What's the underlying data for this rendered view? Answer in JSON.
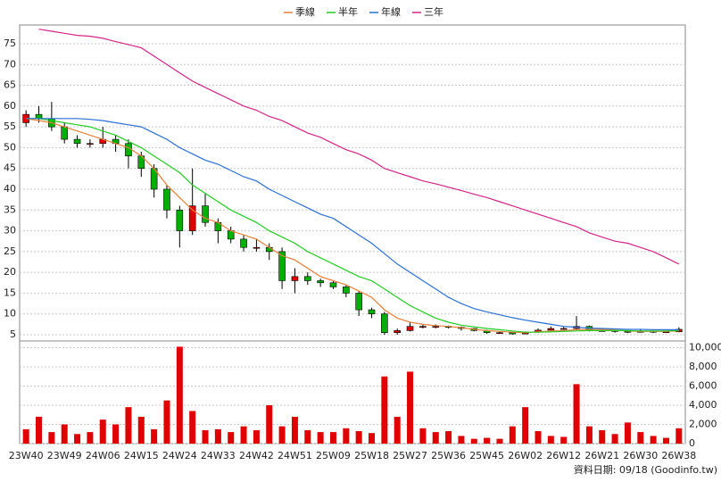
{
  "chart_data": [
    {
      "type": "candlestick",
      "up_color": "#e00000",
      "down_color": "#00b000",
      "ylim": [
        3.5,
        79.5
      ],
      "yticks": [
        5,
        10,
        15,
        20,
        25,
        30,
        35,
        40,
        45,
        50,
        55,
        60,
        65,
        70,
        75
      ],
      "grid": true,
      "open": [
        56,
        58,
        57,
        55,
        52,
        51,
        51,
        52,
        51,
        48,
        45,
        40,
        35,
        30,
        36,
        32,
        30,
        28,
        26,
        26,
        25,
        18,
        19,
        18,
        17.5,
        16.5,
        15,
        11,
        10,
        5.5,
        6,
        7,
        7,
        7,
        6.8,
        6.5,
        6,
        5.5,
        5.5,
        5.2,
        5.6,
        6.1,
        6.5,
        6.5,
        7,
        6,
        6,
        5.8,
        5.6,
        5.9,
        5.6,
        5.7
      ],
      "high": [
        59,
        60,
        61,
        56,
        53,
        52,
        55,
        53,
        52,
        49,
        46,
        41,
        36,
        45,
        39,
        33,
        31,
        29,
        28,
        27,
        26,
        21,
        20,
        18.5,
        18,
        17,
        15.5,
        11.5,
        10.5,
        6.5,
        8,
        7.5,
        7.5,
        7.2,
        7,
        6.6,
        6.2,
        5.8,
        5.6,
        5.8,
        6.5,
        7,
        7,
        9.5,
        7.2,
        6.5,
        6.2,
        6,
        6.3,
        6,
        5.9,
        6.8
      ],
      "low": [
        55,
        56,
        54,
        51,
        50,
        50,
        50,
        49,
        45,
        43,
        38,
        33,
        26,
        29,
        31,
        27,
        27,
        25,
        25,
        23,
        16,
        15,
        17,
        16.5,
        16,
        14,
        9.5,
        9,
        5,
        5,
        5.8,
        6.5,
        6.5,
        6.5,
        6,
        5.8,
        5.2,
        5.2,
        5,
        5.1,
        5.5,
        6,
        6.2,
        6.3,
        5.8,
        5.8,
        5.5,
        5.4,
        5.5,
        5.4,
        5.5,
        5.6
      ],
      "close": [
        58,
        57,
        55,
        52,
        51,
        51,
        52,
        51,
        48,
        45,
        40,
        35,
        30,
        36,
        32,
        30,
        28,
        26,
        26,
        25,
        18,
        19,
        18,
        17.5,
        16.5,
        15,
        11,
        10,
        5.5,
        6,
        7,
        7,
        7,
        6.8,
        6.5,
        6,
        5.5,
        5.5,
        5.2,
        5.6,
        6.1,
        6.5,
        6.5,
        7,
        6,
        6,
        5.8,
        5.6,
        5.9,
        5.6,
        5.7,
        6.3
      ],
      "series": [
        {
          "name": "季線",
          "color": "#e8803a",
          "values": [
            57,
            56.5,
            56,
            55,
            54,
            53,
            52,
            51,
            50,
            48,
            45,
            41,
            38,
            35,
            33,
            32,
            30,
            29,
            28,
            26,
            24,
            23,
            21,
            19,
            18,
            17,
            15.5,
            14,
            11,
            9,
            8,
            7.5,
            7.2,
            7,
            6.7,
            6.3,
            6,
            5.8,
            5.6,
            5.5,
            5.7,
            5.9,
            6,
            6.2,
            6.3,
            6.3,
            6.1,
            5.9,
            5.8,
            5.8,
            5.8,
            5.9
          ]
        },
        {
          "name": "半年",
          "color": "#22cc22",
          "values": [
            57,
            57,
            56.5,
            56,
            55.5,
            55,
            54,
            53,
            51.5,
            50,
            48,
            46,
            44,
            41,
            39,
            37,
            35,
            33.5,
            32,
            30,
            28.5,
            27,
            25,
            23.5,
            22,
            20.5,
            19,
            18,
            16,
            14,
            12,
            10.5,
            9,
            8,
            7.3,
            6.9,
            6.5,
            6.2,
            5.9,
            5.6,
            5.6,
            5.7,
            5.8,
            5.9,
            6,
            6,
            6,
            6,
            5.9,
            5.9,
            5.9,
            6
          ]
        },
        {
          "name": "年線",
          "color": "#2a6fd6",
          "values": [
            57,
            57,
            57,
            57,
            57,
            56.8,
            56.5,
            56,
            55.5,
            55,
            53.5,
            52,
            50,
            48.5,
            47,
            46,
            44.5,
            43,
            42,
            40,
            38.5,
            37,
            35.5,
            34,
            33,
            31,
            29,
            27,
            24.5,
            22,
            20,
            18,
            16,
            14,
            12.5,
            11.3,
            10.5,
            9.8,
            9.1,
            8.5,
            8,
            7.5,
            7,
            6.8,
            6.6,
            6.5,
            6.4,
            6.3,
            6.3,
            6.2,
            6.2,
            6.2
          ]
        },
        {
          "name": "三年",
          "color": "#d6248a",
          "values": [
            null,
            78.5,
            78,
            77.5,
            77,
            76.8,
            76.3,
            75.5,
            74.8,
            74,
            72,
            70,
            68,
            66,
            64.5,
            63,
            61.5,
            60,
            59,
            57.5,
            56.5,
            55,
            53.5,
            52.5,
            51,
            49.5,
            48.5,
            47,
            45,
            44,
            43,
            42,
            41.3,
            40.5,
            39.7,
            38.8,
            38,
            37,
            36,
            35,
            34,
            33,
            32,
            31,
            29.5,
            28.5,
            27.5,
            27,
            26,
            25,
            23.5,
            22
          ]
        }
      ]
    },
    {
      "type": "bar",
      "color": "#e00000",
      "categories": [
        "23W40",
        null,
        null,
        "23W49",
        null,
        null,
        "24W06",
        null,
        null,
        "24W15",
        null,
        null,
        "24W24",
        null,
        null,
        "24W33",
        null,
        null,
        "24W42",
        null,
        null,
        "24W51",
        null,
        null,
        "25W09",
        null,
        null,
        "25W18",
        null,
        null,
        "25W27",
        null,
        null,
        "25W36",
        null,
        null,
        "25W45",
        null,
        null,
        "26W02",
        null,
        null,
        "26W12",
        null,
        null,
        "26W21",
        null,
        null,
        "26W30",
        null,
        null,
        "26W38"
      ],
      "values": [
        1500,
        2800,
        1200,
        2000,
        1000,
        1200,
        2500,
        2000,
        3800,
        2800,
        1500,
        4500,
        10100,
        3400,
        1400,
        1500,
        1200,
        1800,
        1400,
        4000,
        1800,
        2800,
        1400,
        1200,
        1200,
        1600,
        1300,
        1100,
        7000,
        2800,
        7500,
        1600,
        1200,
        1300,
        800,
        500,
        600,
        500,
        1800,
        3800,
        1300,
        800,
        700,
        6200,
        1800,
        1400,
        1000,
        2200,
        1200,
        800,
        600,
        1600
      ],
      "ylim": [
        0,
        10700
      ],
      "yticks": [
        0,
        {
          "value": 2000,
          "label": "2,000"
        },
        {
          "value": 4000,
          "label": "4,000"
        },
        {
          "value": 6000,
          "label": "6,000"
        },
        {
          "value": 8000,
          "label": "8,000"
        },
        {
          "value": 10000,
          "label": "10,000"
        }
      ],
      "grid": true
    }
  ],
  "footer": "資料日期: 09/18 (Goodinfo.tw)"
}
